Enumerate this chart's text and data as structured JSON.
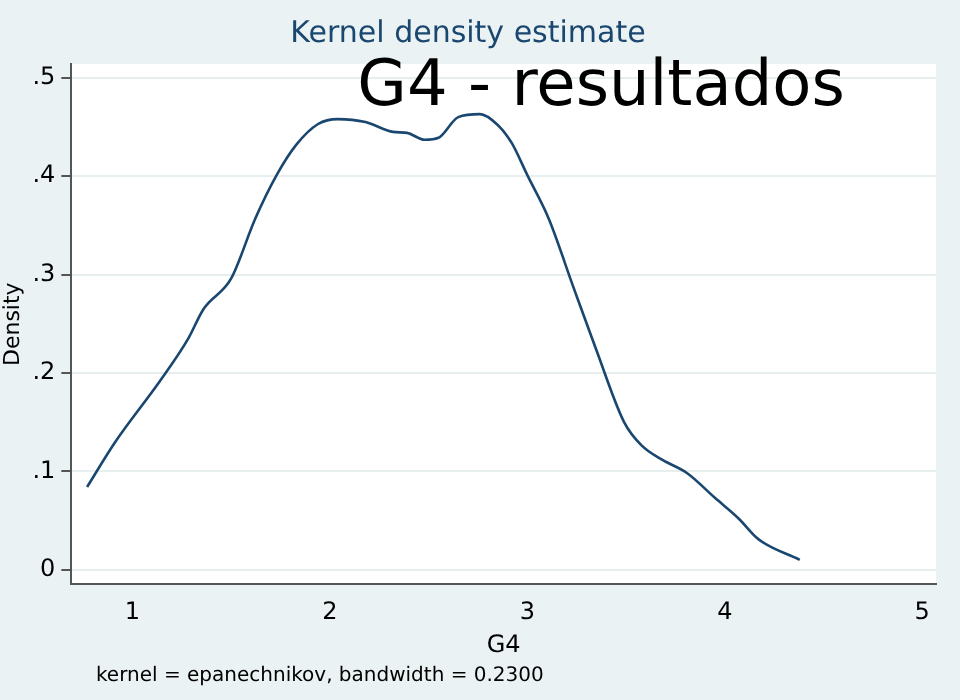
{
  "chart_data": {
    "type": "line",
    "title": "Kernel density estimate",
    "xlabel": "G4",
    "ylabel": "Density",
    "annotations": [
      "G4 - resultados",
      "kernel = epanechnikov, bandwidth = 0.2300"
    ],
    "series": [
      {
        "color": "#1a476f",
        "x": [
          0.77,
          0.91,
          1.14,
          1.28,
          1.36,
          1.5,
          1.62,
          1.73,
          1.83,
          1.94,
          2.04,
          2.18,
          2.32,
          2.39,
          2.48,
          2.55,
          2.65,
          2.76,
          2.85,
          2.92,
          3.0,
          3.11,
          3.23,
          3.35,
          3.49,
          3.58,
          3.68,
          3.81,
          3.95,
          4.07,
          4.17,
          4.38
        ],
        "values": [
          0.084,
          0.129,
          0.192,
          0.234,
          0.265,
          0.296,
          0.356,
          0.401,
          0.432,
          0.453,
          0.458,
          0.455,
          0.445,
          0.444,
          0.437,
          0.439,
          0.46,
          0.463,
          0.452,
          0.434,
          0.401,
          0.356,
          0.289,
          0.223,
          0.15,
          0.126,
          0.112,
          0.098,
          0.073,
          0.052,
          0.031,
          0.01
        ]
      }
    ],
    "xlim": [
      0.69,
      5.07
    ],
    "ylim": [
      -0.015,
      0.514
    ],
    "xticks": [
      1,
      2,
      3,
      4,
      5
    ],
    "yticks": [
      0,
      {
        "value": 0.1,
        "label": ".1"
      },
      {
        "value": 0.2,
        "label": ".2"
      },
      {
        "value": 0.3,
        "label": ".3"
      },
      {
        "value": 0.4,
        "label": ".4"
      },
      {
        "value": 0.5,
        "label": ".5"
      }
    ],
    "grid": "y",
    "marker": "none",
    "line_style": "solid",
    "legend": false
  }
}
